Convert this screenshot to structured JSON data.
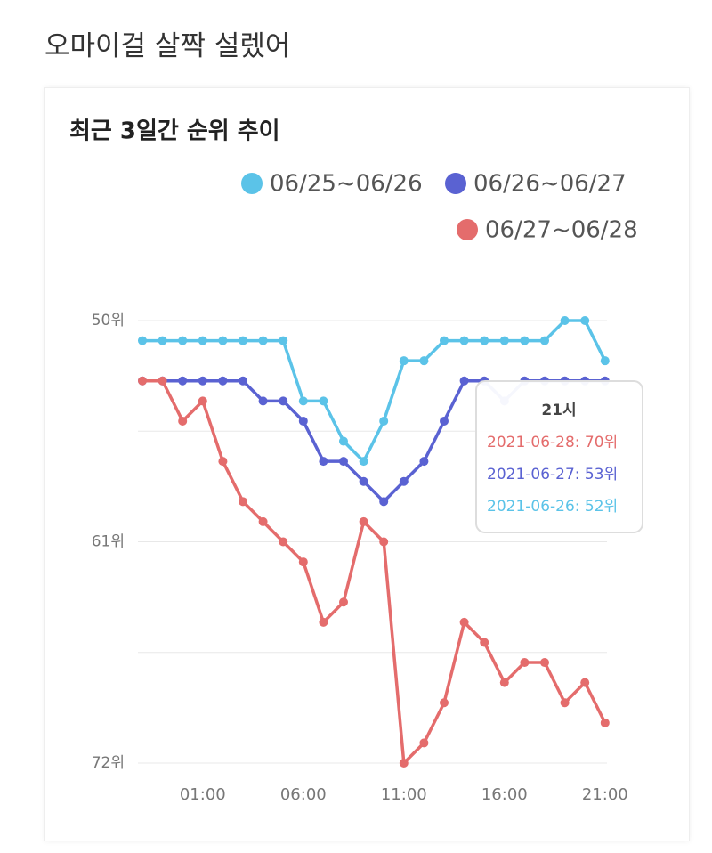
{
  "page_title": "오마이걸 살짝 설렜어",
  "chart_data": {
    "type": "line",
    "title": "최근 3일간 순위 추이",
    "categories": [
      null,
      null,
      null,
      "01:00",
      null,
      null,
      null,
      null,
      "06:00",
      null,
      null,
      null,
      null,
      "11:00",
      null,
      null,
      null,
      null,
      "16:00",
      null,
      null,
      null,
      null,
      "21:00"
    ],
    "series": [
      {
        "name": "06/25~06/26",
        "color": "#5bc3e8",
        "values": [
          51,
          51,
          51,
          51,
          51,
          51,
          51,
          51,
          54,
          54,
          56,
          57,
          55,
          52,
          52,
          51,
          51,
          51,
          51,
          51,
          51,
          50,
          50,
          52
        ]
      },
      {
        "name": "06/26~06/27",
        "color": "#5a62d2",
        "values": [
          53,
          53,
          53,
          53,
          53,
          53,
          54,
          54,
          55,
          57,
          57,
          58,
          59,
          58,
          57,
          55,
          53,
          53,
          54,
          53,
          53,
          53,
          53,
          53
        ]
      },
      {
        "name": "06/27~06/28",
        "color": "#e46c6c",
        "values": [
          53,
          53,
          55,
          54,
          57,
          59,
          60,
          61,
          62,
          65,
          64,
          60,
          61,
          72,
          71,
          69,
          65,
          66,
          68,
          67,
          67,
          69,
          68,
          70
        ]
      }
    ],
    "ylim": [
      50,
      72
    ],
    "y_inverted": true,
    "yticks": [
      {
        "value": 50,
        "label": "50위"
      },
      {
        "value": 61,
        "label": "61위"
      },
      {
        "value": 72,
        "label": "72위"
      }
    ],
    "ygrid": [
      55.5,
      66.5
    ],
    "grid": true,
    "tooltip": {
      "title": "21시",
      "lines": [
        "2021-06-28: 70위",
        "2021-06-27: 53위",
        "2021-06-26: 52위"
      ]
    }
  }
}
